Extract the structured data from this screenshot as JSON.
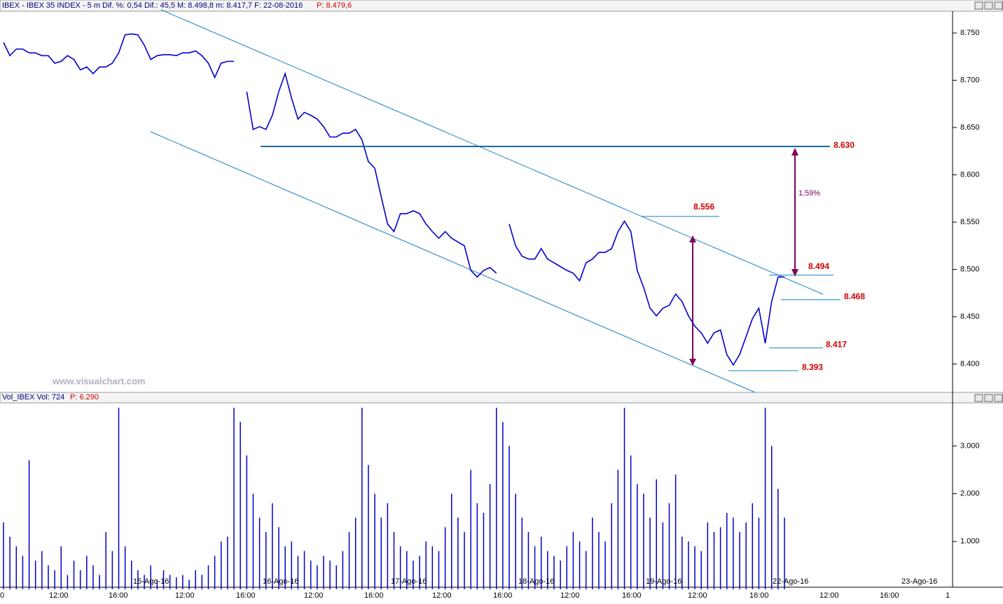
{
  "chart_data": [
    {
      "type": "line",
      "title": "IBEX - IBEX 35 INDEX - 5 m  Dif. %: 0,54  Dif.: 45,5  M: 8.498,8  m: 8.417,7  F: 22-08-2016",
      "last_price": "P: 8.479,6",
      "watermark": "www.visualchart.com",
      "series": [
        {
          "name": "IBEX",
          "color": "#0000cc",
          "values": [
            8740,
            8726,
            8733,
            8733,
            8729,
            8729,
            8726,
            8726,
            8718,
            8720,
            8726,
            8722,
            8711,
            8714,
            8707,
            8714,
            8714,
            8718,
            8729,
            8748,
            8749,
            8748,
            8737,
            8722,
            8726,
            8727,
            8727,
            8726,
            8729,
            8729,
            8731,
            8726,
            8718,
            8703,
            8718,
            8720,
            8720,
            null,
            8688,
            8648,
            8651,
            8648,
            8663,
            8688,
            8707,
            8681,
            8659,
            8666,
            8663,
            8659,
            8651,
            8640,
            8640,
            8644,
            8644,
            8648,
            8637,
            8614,
            8607,
            8577,
            8548,
            8540,
            8559,
            8559,
            8562,
            8559,
            8548,
            8540,
            8533,
            8540,
            8533,
            8529,
            8525,
            8499,
            8492,
            8499,
            8502,
            8496,
            null,
            8548,
            8525,
            8514,
            8511,
            8511,
            8522,
            8511,
            8507,
            8503,
            8499,
            8496,
            8488,
            8507,
            8511,
            8518,
            8518,
            8522,
            8540,
            8551,
            8540,
            8499,
            8481,
            8459,
            8451,
            8459,
            8462,
            8474,
            8466,
            8451,
            8440,
            8433,
            8422,
            8433,
            8436,
            8410,
            8399,
            8410,
            8429,
            8448,
            8459,
            8422,
            8466,
            8492,
            8492
          ]
        }
      ],
      "levels": [
        {
          "value": 8630,
          "label": "8.630"
        },
        {
          "value": 8556,
          "label": "8.556"
        },
        {
          "value": 8494,
          "label": "8.494"
        },
        {
          "value": 8468,
          "label": "8.468"
        },
        {
          "value": 8417,
          "label": "8.417"
        },
        {
          "value": 8393,
          "label": "8.393"
        }
      ],
      "annotation": "1.59%",
      "ylim": [
        8370,
        8773
      ],
      "yticks": [
        {
          "value": 8400,
          "label": "8.400"
        },
        {
          "value": 8450,
          "label": "8.450"
        },
        {
          "value": 8500,
          "label": "8.500"
        },
        {
          "value": 8550,
          "label": "8.550"
        },
        {
          "value": 8600,
          "label": "8.600"
        },
        {
          "value": 8650,
          "label": "8.650"
        },
        {
          "value": 8700,
          "label": "8.700"
        },
        {
          "value": 8750,
          "label": "8.750"
        }
      ]
    },
    {
      "type": "bar",
      "title": "Vol_IBEX Vol: 724",
      "last_price": "P: 6.290",
      "series": [
        {
          "name": "Vol",
          "color": "#0000cc",
          "values": [
            1400,
            1100,
            900,
            700,
            2700,
            600,
            800,
            500,
            400,
            900,
            300,
            600,
            400,
            700,
            500,
            300,
            1200,
            800,
            3800,
            900,
            600,
            400,
            300,
            500,
            200,
            400,
            300,
            250,
            300,
            200,
            400,
            300,
            500,
            700,
            1000,
            1100,
            3800,
            3500,
            2800,
            2000,
            1500,
            1200,
            1800,
            1300,
            900,
            1000,
            700,
            800,
            600,
            500,
            700,
            600,
            500,
            800,
            1200,
            1500,
            3800,
            2600,
            2000,
            1500,
            1800,
            1200,
            900,
            800,
            600,
            700,
            1000,
            900,
            800,
            1300,
            2000,
            1500,
            1200,
            2500,
            1800,
            1600,
            2200,
            3800,
            3500,
            3000,
            2000,
            1500,
            1200,
            900,
            1100,
            800,
            700,
            600,
            900,
            1200,
            1000,
            800,
            1500,
            1200,
            1000,
            1800,
            2500,
            3800,
            2800,
            2200,
            2000,
            1500,
            2300,
            1400,
            1800,
            2400,
            1100,
            1000,
            900,
            800,
            1400,
            1200,
            1300,
            1600,
            1500,
            1200,
            1400,
            1800,
            1500,
            3800,
            3000,
            2100,
            1500
          ]
        }
      ],
      "ylim": [
        0,
        3900
      ],
      "yticks": [
        {
          "value": 1000,
          "label": "1.000"
        },
        {
          "value": 2000,
          "label": "2.000"
        },
        {
          "value": 3000,
          "label": "3.000"
        }
      ],
      "x_time_labels": [
        "0",
        "12:00",
        "16:00",
        "12:00",
        "16:00",
        "12:00",
        "16:00",
        "12:00",
        "16:00",
        "12:00",
        "16:00",
        "12:00",
        "16:00",
        "12:00",
        "16:00",
        "1"
      ],
      "x_date_labels": [
        "15-Ago-16",
        "16-Ago-16",
        "17-Ago-16",
        "18-Ago-16",
        "19-Ago-16",
        "22-Ago-16",
        "23-Ago-16"
      ]
    }
  ]
}
